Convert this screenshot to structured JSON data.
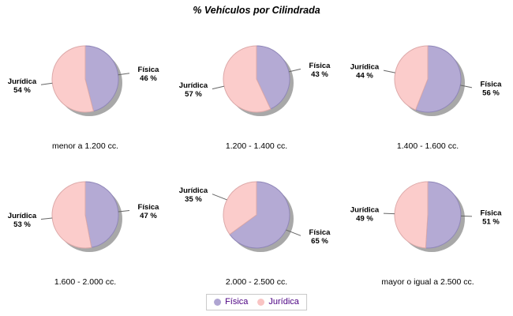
{
  "chart_data": {
    "type": "pie",
    "title": "% Vehículos por Cilindrada",
    "value_suffix": " %",
    "legend": {
      "position": "bottom",
      "entries": [
        {
          "label": "Física",
          "color": "#AFA5D2"
        },
        {
          "label": "Jurídica",
          "color": "#F9C4C3"
        }
      ]
    },
    "series_colors": {
      "Física": {
        "fill": "#B4AAD4",
        "stroke": "#9087B8"
      },
      "Jurídica": {
        "fill": "#FBCCCB",
        "stroke": "#DCA9A9"
      }
    },
    "styles": {
      "shadow_color": "#9E9E9E",
      "line_color": "#666666",
      "label_color": "#000000",
      "legend_text_color": "#4B0082",
      "legend_border_color": "#C9C9C9",
      "background": "#FFFFFF"
    },
    "pies": [
      {
        "category": "menor a 1.200 cc.",
        "slices": [
          {
            "label": "Física",
            "value": 46
          },
          {
            "label": "Jurídica",
            "value": 54
          }
        ]
      },
      {
        "category": "1.200 - 1.400 cc.",
        "slices": [
          {
            "label": "Física",
            "value": 43
          },
          {
            "label": "Jurídica",
            "value": 57
          }
        ]
      },
      {
        "category": "1.400 - 1.600 cc.",
        "slices": [
          {
            "label": "Física",
            "value": 56
          },
          {
            "label": "Jurídica",
            "value": 44
          }
        ]
      },
      {
        "category": "1.600 - 2.000 cc.",
        "slices": [
          {
            "label": "Física",
            "value": 47
          },
          {
            "label": "Jurídica",
            "value": 53
          }
        ]
      },
      {
        "category": "2.000 - 2.500 cc.",
        "slices": [
          {
            "label": "Física",
            "value": 65
          },
          {
            "label": "Jurídica",
            "value": 35
          }
        ]
      },
      {
        "category": "mayor o igual a 2.500 cc.",
        "slices": [
          {
            "label": "Física",
            "value": 51
          },
          {
            "label": "Jurídica",
            "value": 49
          }
        ]
      }
    ]
  }
}
